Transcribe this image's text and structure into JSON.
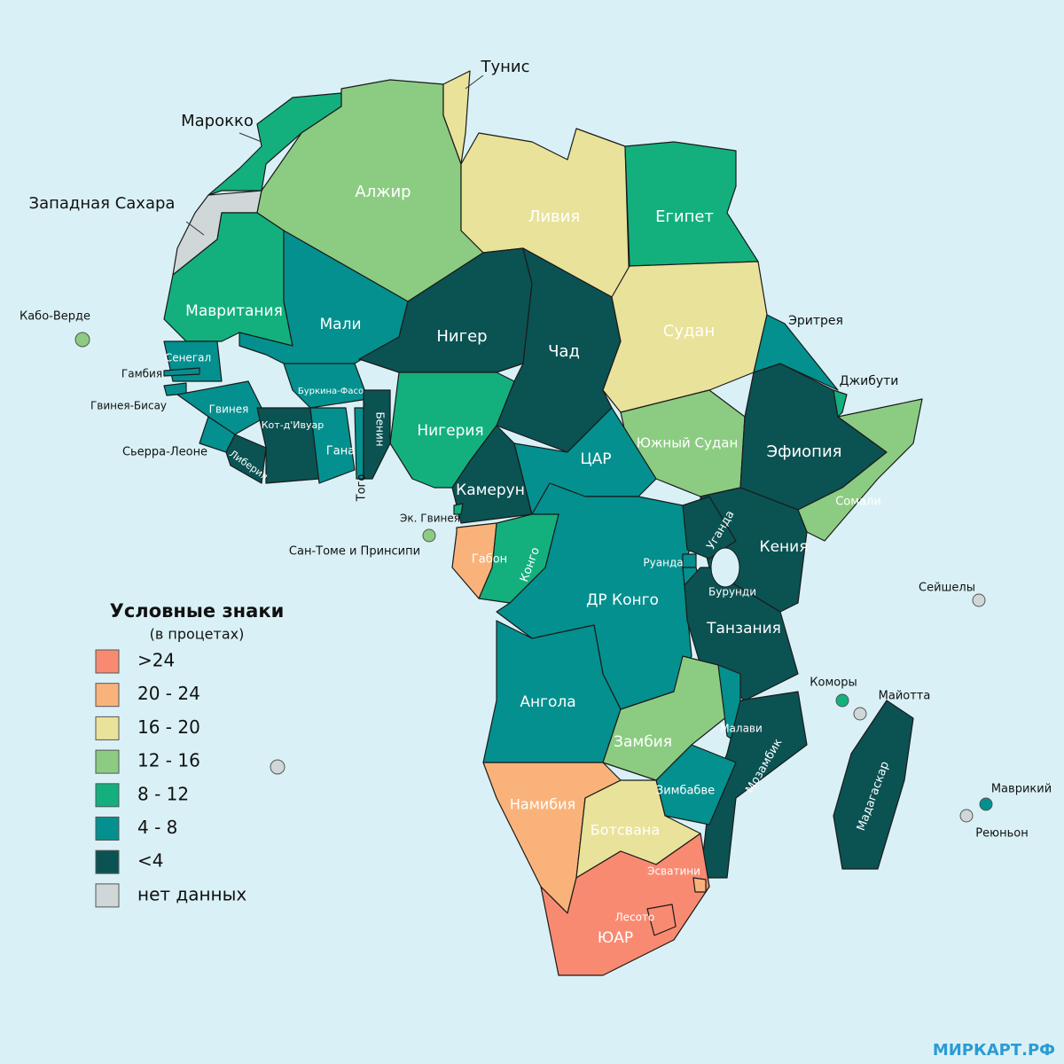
{
  "legend": {
    "title": "Условные знаки",
    "subtitle": "(в процетах)",
    "items": [
      {
        "label": ">24",
        "color": "#f98a72"
      },
      {
        "label": "20 - 24",
        "color": "#f9b37a"
      },
      {
        "label": "16 - 20",
        "color": "#e9e29a"
      },
      {
        "label": "12 - 16",
        "color": "#8ccc82"
      },
      {
        "label": "8 - 12",
        "color": "#13b07e"
      },
      {
        "label": "4 - 8",
        "color": "#04908f"
      },
      {
        "label": "<4",
        "color": "#0b5253"
      },
      {
        "label": "нет данных",
        "color": "#d0d7d8"
      }
    ]
  },
  "countries": [
    {
      "label": "Марокко",
      "color": "#13b07e"
    },
    {
      "label": "Западная Сахара",
      "color": "#d0d7d8"
    },
    {
      "label": "Алжир",
      "color": "#8ccc82"
    },
    {
      "label": "Тунис",
      "color": "#e9e29a"
    },
    {
      "label": "Ливия",
      "color": "#e9e29a"
    },
    {
      "label": "Египет",
      "color": "#13b07e"
    },
    {
      "label": "Мавритания",
      "color": "#13b07e"
    },
    {
      "label": "Мали",
      "color": "#04908f"
    },
    {
      "label": "Нигер",
      "color": "#0b5253"
    },
    {
      "label": "Чад",
      "color": "#0b5253"
    },
    {
      "label": "Судан",
      "color": "#e9e29a"
    },
    {
      "label": "Южный Судан",
      "color": "#8ccc82"
    },
    {
      "label": "Эфиопия",
      "color": "#0b5253"
    },
    {
      "label": "Эритрея",
      "color": "#04908f"
    },
    {
      "label": "Джибути",
      "color": "#13b07e"
    },
    {
      "label": "Сомали",
      "color": "#8ccc82"
    },
    {
      "label": "Нигерия",
      "color": "#13b07e"
    },
    {
      "label": "Камерун",
      "color": "#0b5253"
    },
    {
      "label": "ЦАР",
      "color": "#04908f"
    },
    {
      "label": "ДР Конго",
      "color": "#04908f"
    },
    {
      "label": "Конго",
      "color": "#13b07e"
    },
    {
      "label": "Габон",
      "color": "#f9b37a"
    },
    {
      "label": "Эк. Гвинея",
      "color": "#13b07e"
    },
    {
      "label": "Сан-Томе и Принсипи",
      "color": "#8ccc82"
    },
    {
      "label": "Кения",
      "color": "#0b5253"
    },
    {
      "label": "Уганда",
      "color": "#0b5253"
    },
    {
      "label": "Руанда",
      "color": "#04908f"
    },
    {
      "label": "Бурунди",
      "color": "#04908f"
    },
    {
      "label": "Танзания",
      "color": "#0b5253"
    },
    {
      "label": "Ангола",
      "color": "#04908f"
    },
    {
      "label": "Замбия",
      "color": "#8ccc82"
    },
    {
      "label": "Малави",
      "color": "#04908f"
    },
    {
      "label": "Мозамбик",
      "color": "#0b5253"
    },
    {
      "label": "Зимбабве",
      "color": "#04908f"
    },
    {
      "label": "Намибия",
      "color": "#f9b37a"
    },
    {
      "label": "Ботсвана",
      "color": "#e9e29a"
    },
    {
      "label": "ЮАР",
      "color": "#f98a72"
    },
    {
      "label": "Эсватини",
      "color": "#f9b37a"
    },
    {
      "label": "Лесото",
      "color": "#f98a72"
    },
    {
      "label": "Мадагаскар",
      "color": "#0b5253"
    },
    {
      "label": "Коморы",
      "color": "#13b07e"
    },
    {
      "label": "Майотта",
      "color": "#d0d7d8"
    },
    {
      "label": "Сейшелы",
      "color": "#d0d7d8"
    },
    {
      "label": "Маврикий",
      "color": "#04908f"
    },
    {
      "label": "Реюньон",
      "color": "#d0d7d8"
    },
    {
      "label": "Кабо-Верде",
      "color": "#8ccc82"
    },
    {
      "label": "Сенегал",
      "color": "#04908f"
    },
    {
      "label": "Гамбия",
      "color": "#04908f"
    },
    {
      "label": "Гвинея-Бисау",
      "color": "#04908f"
    },
    {
      "label": "Гвинея",
      "color": "#04908f"
    },
    {
      "label": "Сьерра-Леоне",
      "color": "#04908f"
    },
    {
      "label": "Либерия",
      "color": "#0b5253"
    },
    {
      "label": "Кот-д'Ивуар",
      "color": "#0b5253"
    },
    {
      "label": "Буркина-Фасо",
      "color": "#04908f"
    },
    {
      "label": "Гана",
      "color": "#04908f"
    },
    {
      "label": "Того",
      "color": "#04908f"
    },
    {
      "label": "Бенин",
      "color": "#0b5253"
    }
  ],
  "watermark": "МИРКАРТ.РФ"
}
